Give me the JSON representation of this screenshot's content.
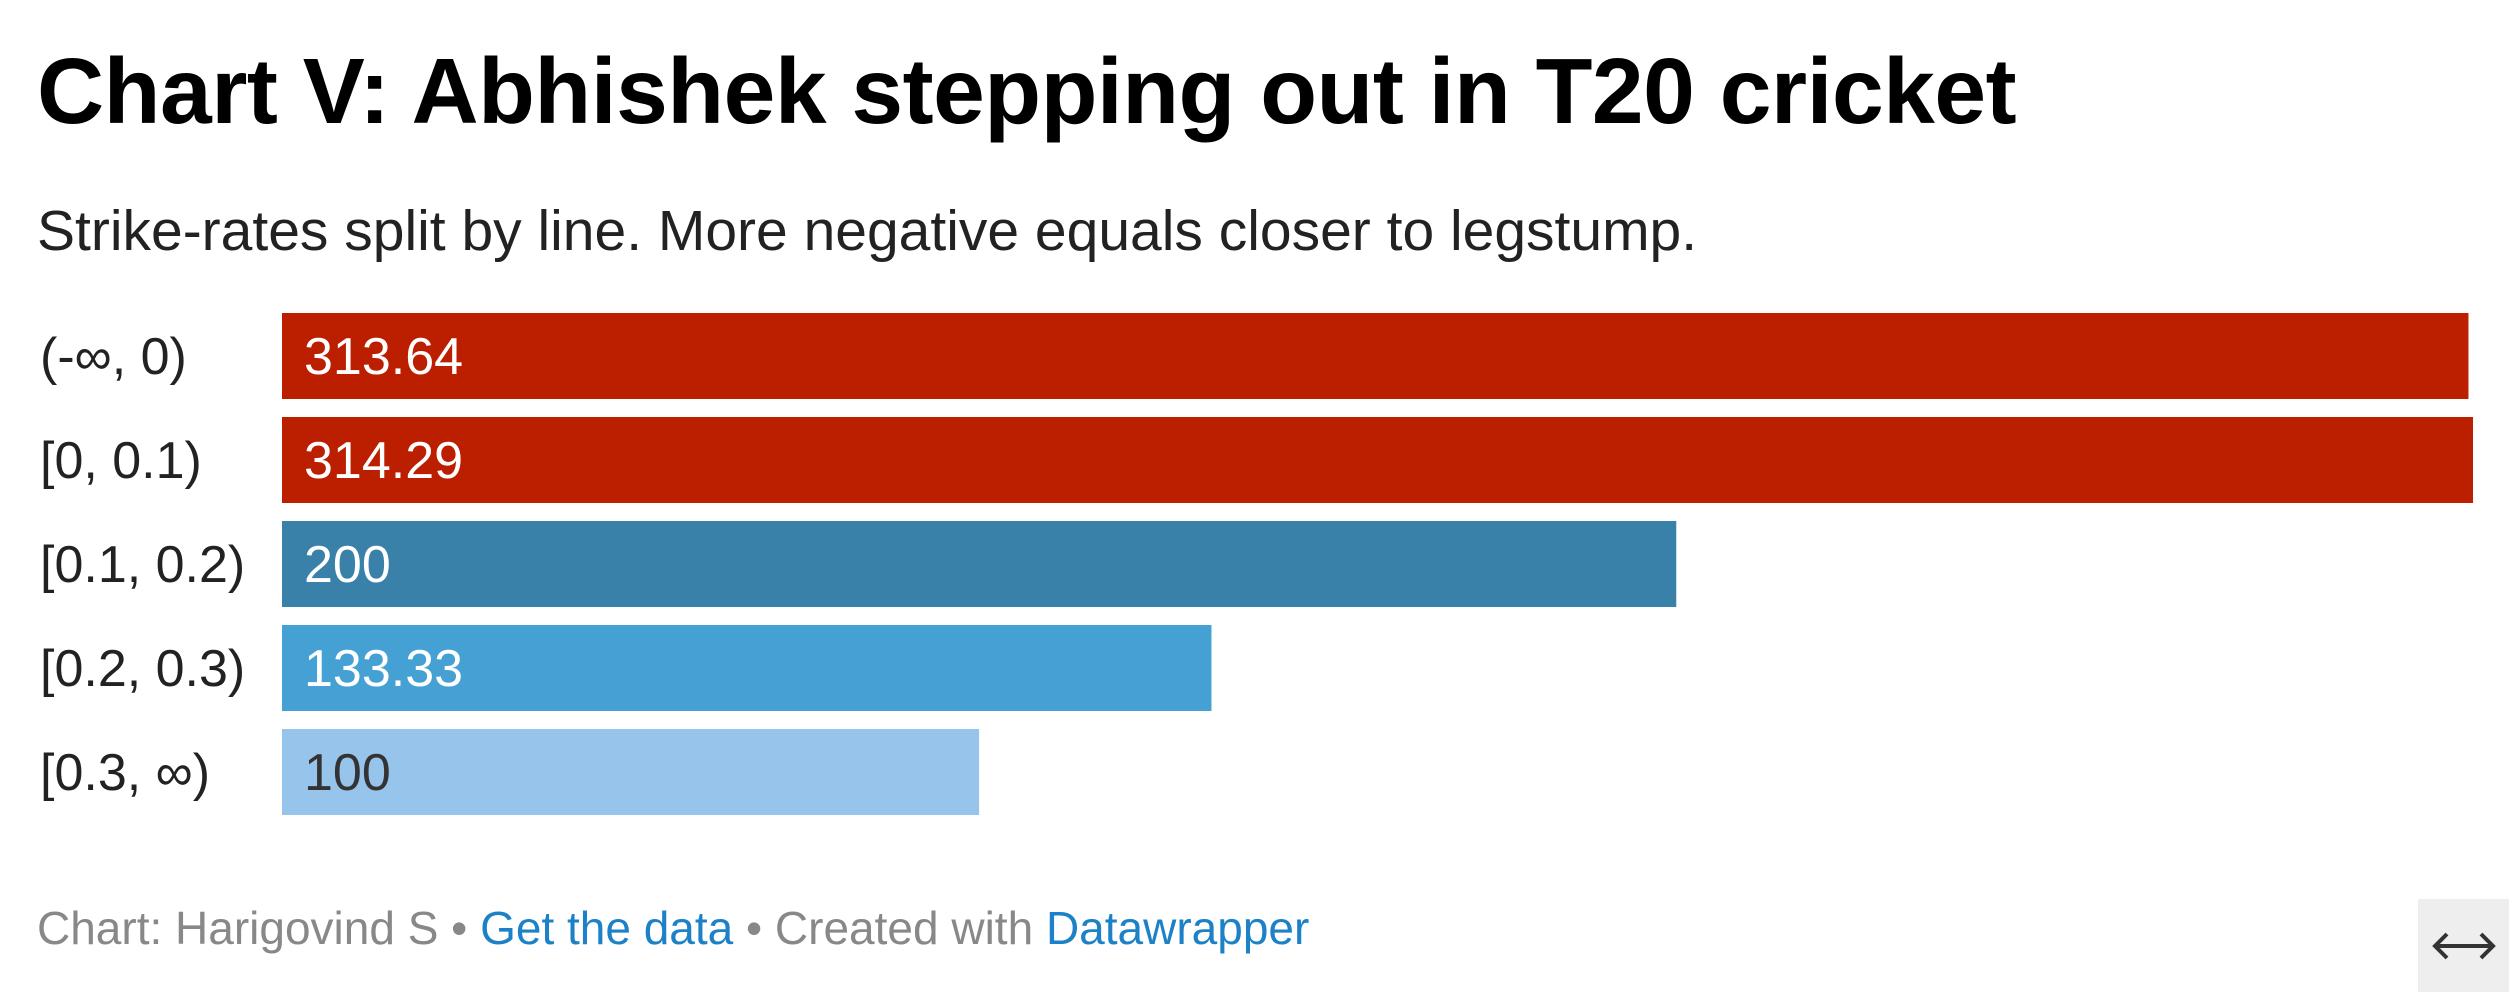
{
  "header": {
    "title": "Chart V: Abhishek stepping out in T20 cricket",
    "subtitle": "Strike-rates split by line. More negative equals closer to legstump."
  },
  "chart_data": {
    "type": "bar",
    "orientation": "horizontal",
    "title": "Chart V: Abhishek stepping out in T20 cricket",
    "subtitle": "Strike-rates split by line. More negative equals closer to legstump.",
    "categories": [
      "(-∞, 0)",
      "[0, 0.1)",
      "[0.1, 0.2)",
      "[0.2, 0.3)",
      "[0.3, ∞)"
    ],
    "values": [
      313.64,
      314.29,
      200,
      133.33,
      100
    ],
    "value_labels": [
      "313.64",
      "314.29",
      "200",
      "133.33",
      "100"
    ],
    "colors": [
      "#bc1f00",
      "#bc1f00",
      "#3981a9",
      "#45a1d4",
      "#97c4eb"
    ],
    "label_colors": [
      "#ffffff",
      "#ffffff",
      "#ffffff",
      "#ffffff",
      "#333333"
    ],
    "xlim": [
      0,
      314.29
    ],
    "xlabel": "",
    "ylabel": "",
    "grid": false
  },
  "footer": {
    "prefix": "Chart: Harigovind S",
    "separator1": " • ",
    "data_link": "Get the data",
    "separator2": " • Created with ",
    "tool_link": "Datawrapper"
  },
  "controls": {
    "expand_icon": "expand-horizontal-icon",
    "expand_glyph": "⟷"
  }
}
